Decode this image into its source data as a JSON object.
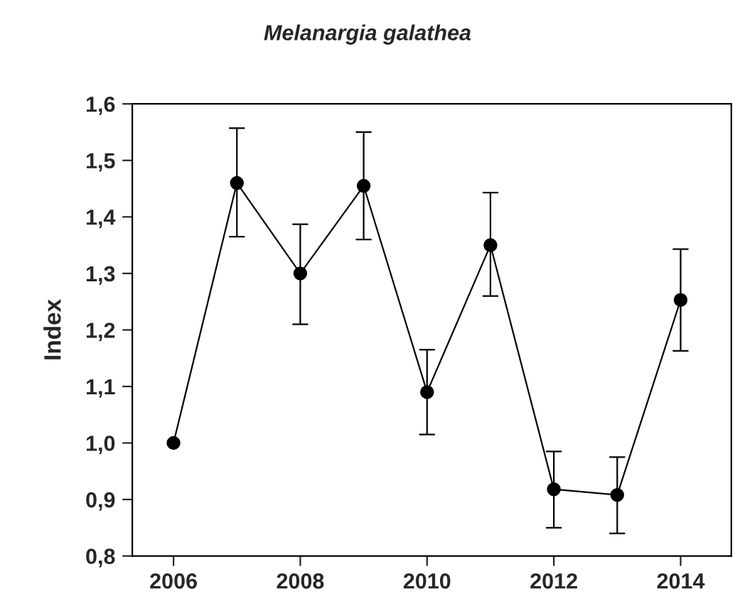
{
  "chart_data": {
    "type": "line",
    "title": "Melanargia galathea",
    "ylabel": "Index",
    "x": [
      2006,
      2007,
      2008,
      2009,
      2010,
      2011,
      2012,
      2013,
      2014
    ],
    "series": [
      {
        "color": "#000000",
        "values": [
          1.0,
          1.46,
          1.3,
          1.455,
          1.09,
          1.35,
          0.918,
          0.908,
          1.253
        ],
        "errors": [
          null,
          [
            1.365,
            1.557
          ],
          [
            1.21,
            1.387
          ],
          [
            1.36,
            1.55
          ],
          [
            1.015,
            1.165
          ],
          [
            1.26,
            1.443
          ],
          [
            0.85,
            0.985
          ],
          [
            0.84,
            0.975
          ],
          [
            1.163,
            1.343
          ]
        ]
      }
    ],
    "xlim": [
      2005.35,
      2014.8
    ],
    "xticks": [
      2006,
      2008,
      2010,
      2012,
      2014
    ],
    "ylim": [
      0.8,
      1.6
    ],
    "yticks": [
      {
        "value": 0.8,
        "label": "0,8"
      },
      {
        "value": 0.9,
        "label": "0,9"
      },
      {
        "value": 1.0,
        "label": "1,0"
      },
      {
        "value": 1.1,
        "label": "1,1"
      },
      {
        "value": 1.2,
        "label": "1,2"
      },
      {
        "value": 1.3,
        "label": "1,3"
      },
      {
        "value": 1.4,
        "label": "1,4"
      },
      {
        "value": 1.5,
        "label": "1,5"
      },
      {
        "value": 1.6,
        "label": "1,6"
      }
    ],
    "marker": "circle",
    "line_style": "solid",
    "grid": false,
    "legend": false
  }
}
